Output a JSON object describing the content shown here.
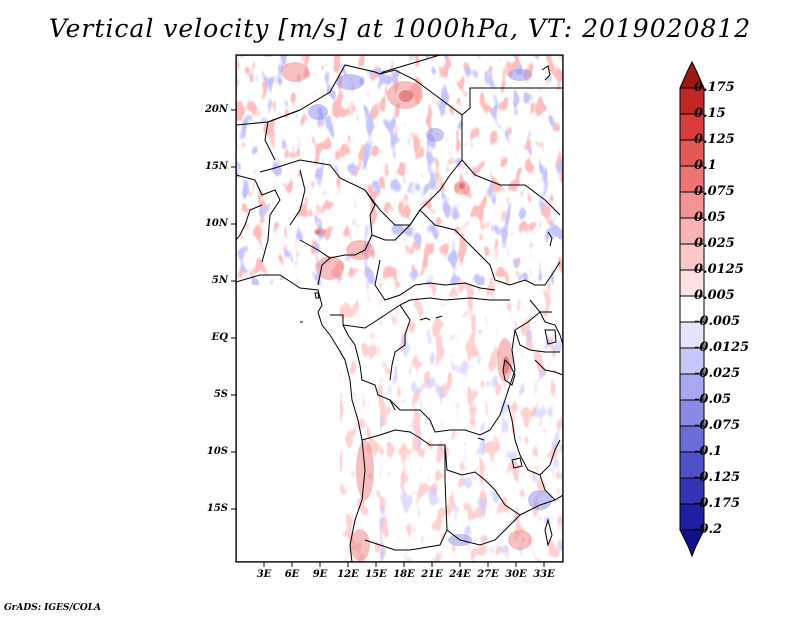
{
  "title": "Vertical velocity [m/s] at 1000hPa, VT: 2019020812",
  "lat_labels": [
    "20N",
    "15N",
    "10N",
    "5N",
    "EQ",
    "5S",
    "10S",
    "15S"
  ],
  "lon_labels": [
    "3E",
    "6E",
    "9E",
    "12E",
    "15E",
    "18E",
    "21E",
    "24E",
    "27E",
    "30E",
    "33E"
  ],
  "colorbar": {
    "labels": [
      "0.175",
      "0.15",
      "0.125",
      "0.1",
      "0.075",
      "0.05",
      "0.025",
      "0.0125",
      "0.005",
      "-0.005",
      "-0.0125",
      "-0.025",
      "-0.05",
      "-0.075",
      "-0.1",
      "-0.125",
      "-0.175",
      "-0.2"
    ],
    "colors": [
      "#a01818",
      "#c02828",
      "#d83c3c",
      "#e45858",
      "#ec7474",
      "#f29494",
      "#f8b4b4",
      "#fcd6d6",
      "#ffffff",
      "#ffffff",
      "#d8d8fc",
      "#b8b8f6",
      "#9494ec",
      "#7474de",
      "#5656cc",
      "#3838b8",
      "#2020a0",
      "#10108a"
    ]
  },
  "credit": "GrADS: IGES/COLA"
}
